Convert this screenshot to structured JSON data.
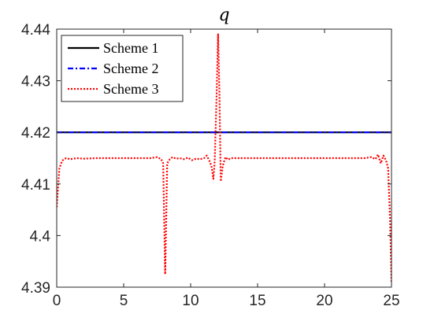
{
  "chart_data": {
    "type": "line",
    "title": "q",
    "xlabel": "",
    "ylabel": "",
    "xlim": [
      0,
      25
    ],
    "ylim": [
      4.39,
      4.44
    ],
    "xticks": [
      0,
      5,
      10,
      15,
      20,
      25
    ],
    "xtick_labels": [
      "0",
      "5",
      "10",
      "15",
      "20",
      "25"
    ],
    "yticks": [
      4.39,
      4.4,
      4.41,
      4.42,
      4.43,
      4.44
    ],
    "ytick_labels": [
      "4.39",
      "4.4",
      "4.41",
      "4.42",
      "4.43",
      "4.44"
    ],
    "grid": false,
    "legend_position": "top-left",
    "series": [
      {
        "name": "Scheme 1",
        "color": "#000000",
        "style": "solid",
        "x": [
          0,
          25
        ],
        "y": [
          4.42,
          4.42
        ]
      },
      {
        "name": "Scheme 2",
        "color": "#0000ff",
        "style": "dashdot",
        "x": [
          0,
          25
        ],
        "y": [
          4.42,
          4.42
        ]
      },
      {
        "name": "Scheme 3",
        "color": "#ff0000",
        "style": "dotted",
        "x": [
          0,
          0.2,
          0.4,
          0.7,
          1.0,
          1.5,
          2.0,
          3.0,
          4.0,
          5.0,
          6.0,
          7.0,
          7.5,
          7.8,
          7.95,
          8.1,
          8.25,
          8.45,
          8.65,
          8.9,
          9.2,
          9.5,
          9.8,
          10.1,
          10.4,
          10.7,
          11.0,
          11.2,
          11.4,
          11.55,
          11.7,
          11.8,
          11.95,
          12.05,
          12.15,
          12.25,
          12.4,
          12.6,
          12.8,
          13.0,
          13.3,
          13.7,
          14.2,
          15.0,
          16.0,
          17.0,
          18.0,
          19.0,
          20.0,
          21.0,
          22.0,
          23.0,
          23.5,
          23.8,
          24.0,
          24.2,
          24.4,
          24.6,
          24.75,
          24.9,
          25.0
        ],
        "y": [
          4.4055,
          4.413,
          4.4145,
          4.415,
          4.4148,
          4.415,
          4.4149,
          4.415,
          4.415,
          4.415,
          4.415,
          4.415,
          4.4152,
          4.4148,
          4.414,
          4.3925,
          4.414,
          4.4148,
          4.4152,
          4.4149,
          4.415,
          4.4148,
          4.4151,
          4.4146,
          4.4149,
          4.4148,
          4.415,
          4.4155,
          4.4145,
          4.4135,
          4.411,
          4.4145,
          4.428,
          4.439,
          4.428,
          4.4105,
          4.4135,
          4.4152,
          4.4147,
          4.415,
          4.415,
          4.415,
          4.415,
          4.415,
          4.415,
          4.415,
          4.415,
          4.415,
          4.415,
          4.415,
          4.415,
          4.415,
          4.4152,
          4.4148,
          4.4157,
          4.414,
          4.4155,
          4.4145,
          4.413,
          4.4025,
          4.391
        ]
      }
    ]
  }
}
